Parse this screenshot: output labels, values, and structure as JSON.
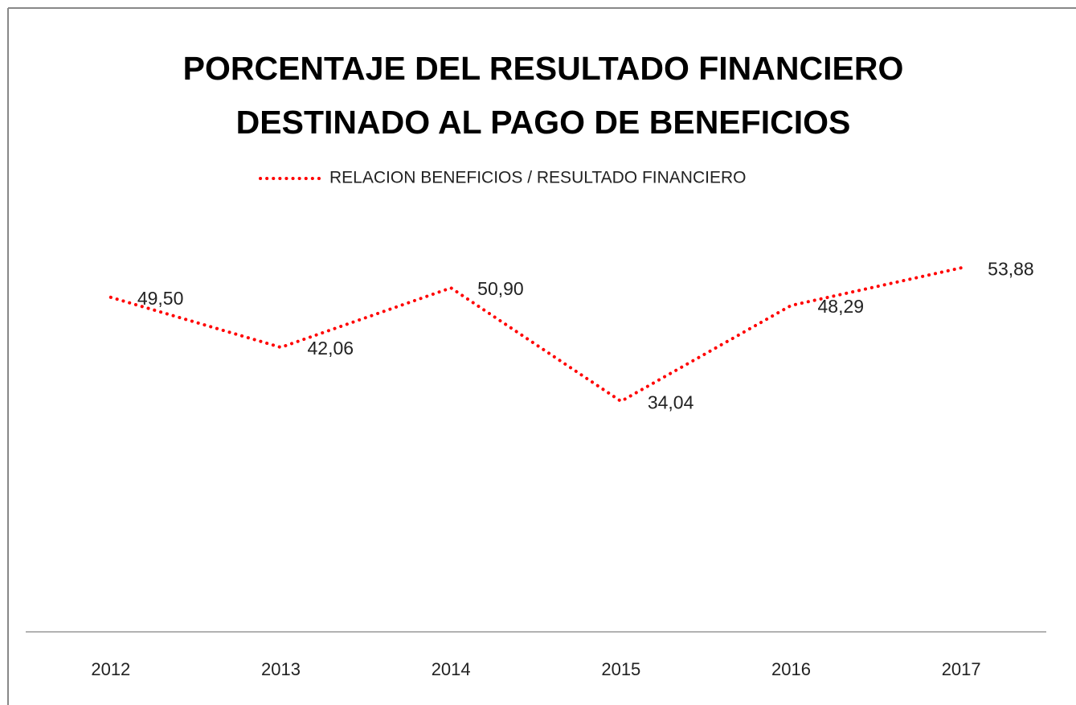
{
  "chart_data": {
    "type": "line",
    "title": [
      "PORCENTAJE DEL RESULTADO FINANCIERO",
      "DESTINADO AL PAGO DE BENEFICIOS"
    ],
    "categories": [
      "2012",
      "2013",
      "2014",
      "2015",
      "2016",
      "2017"
    ],
    "series": [
      {
        "name": "RELACION BENEFICIOS / RESULTADO FINANCIERO",
        "color": "#ff0000",
        "values": [
          49.5,
          42.06,
          50.9,
          34.04,
          48.29,
          53.88
        ],
        "value_labels": [
          "49,50",
          "42,06",
          "50,90",
          "34,04",
          "48,29",
          "53,88"
        ]
      }
    ],
    "ylim": [
      0,
      60
    ],
    "legend": "top"
  }
}
